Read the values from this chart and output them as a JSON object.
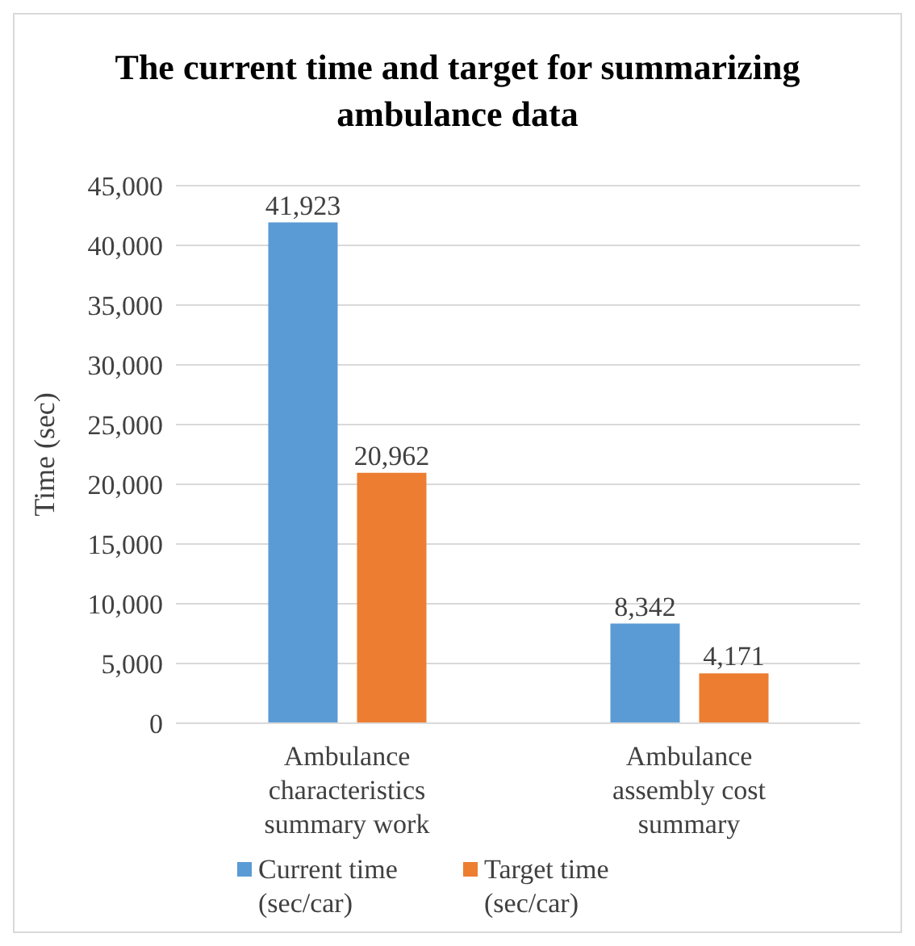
{
  "chart_data": {
    "type": "bar",
    "title": "The current time and target for summarizing ambulance data",
    "ylabel": "Time (sec)",
    "categories": [
      "Ambulance characteristics summary work",
      "Ambulance assembly cost summary"
    ],
    "series": [
      {
        "name": "Current time (sec/car)",
        "color": "#5b9bd5",
        "values": [
          41923,
          8342
        ],
        "value_labels": [
          "41,923",
          "8,342"
        ]
      },
      {
        "name": "Target time (sec/car)",
        "color": "#ed7d31",
        "values": [
          20962,
          4171
        ],
        "value_labels": [
          "20,962",
          "4,171"
        ]
      }
    ],
    "ylim": [
      0,
      45000
    ],
    "yticks": [
      0,
      {
        "value": 5000,
        "label": "5,000"
      },
      {
        "value": 10000,
        "label": "10,000"
      },
      {
        "value": 15000,
        "label": "15,000"
      },
      {
        "value": 20000,
        "label": "20,000"
      },
      {
        "value": 25000,
        "label": "25,000"
      },
      {
        "value": 30000,
        "label": "30,000"
      },
      {
        "value": 35000,
        "label": "35,000"
      },
      {
        "value": 40000,
        "label": "40,000"
      },
      {
        "value": 45000,
        "label": "45,000"
      }
    ],
    "grid": "y",
    "legend": "bottom"
  }
}
